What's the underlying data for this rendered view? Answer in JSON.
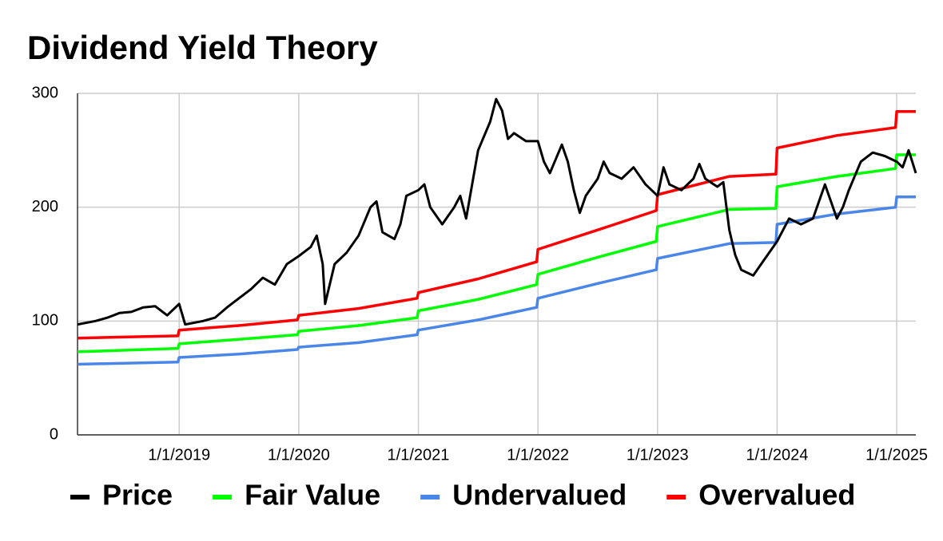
{
  "chart_data": {
    "type": "line",
    "title": "Dividend Yield Theory",
    "xlim": [
      2018.15,
      2025.16
    ],
    "xticks": [
      {
        "value": 2019,
        "label": "1/1/2019"
      },
      {
        "value": 2020,
        "label": "1/1/2020"
      },
      {
        "value": 2021,
        "label": "1/1/2021"
      },
      {
        "value": 2022,
        "label": "1/1/2022"
      },
      {
        "value": 2023,
        "label": "1/1/2023"
      },
      {
        "value": 2024,
        "label": "1/1/2024"
      },
      {
        "value": 2025,
        "label": "1/1/2025"
      }
    ],
    "ylim": [
      0,
      300
    ],
    "yticks": [
      0,
      100,
      200,
      300
    ],
    "grid": true,
    "legend": "bottom",
    "series": [
      {
        "name": "Price",
        "color": "#000000",
        "x": [
          2018.15,
          2018.3,
          2018.4,
          2018.5,
          2018.6,
          2018.7,
          2018.8,
          2018.9,
          2019.0,
          2019.05,
          2019.2,
          2019.3,
          2019.4,
          2019.5,
          2019.6,
          2019.7,
          2019.8,
          2019.9,
          2020.0,
          2020.1,
          2020.15,
          2020.2,
          2020.22,
          2020.3,
          2020.4,
          2020.5,
          2020.6,
          2020.65,
          2020.7,
          2020.8,
          2020.85,
          2020.9,
          2021.0,
          2021.05,
          2021.1,
          2021.2,
          2021.3,
          2021.35,
          2021.4,
          2021.5,
          2021.6,
          2021.65,
          2021.7,
          2021.75,
          2021.8,
          2021.9,
          2022.0,
          2022.05,
          2022.1,
          2022.2,
          2022.25,
          2022.3,
          2022.35,
          2022.4,
          2022.5,
          2022.55,
          2022.6,
          2022.7,
          2022.8,
          2022.9,
          2023.0,
          2023.05,
          2023.1,
          2023.2,
          2023.3,
          2023.35,
          2023.4,
          2023.5,
          2023.55,
          2023.6,
          2023.65,
          2023.7,
          2023.8,
          2023.9,
          2024.0,
          2024.05,
          2024.1,
          2024.2,
          2024.3,
          2024.4,
          2024.45,
          2024.5,
          2024.55,
          2024.6,
          2024.7,
          2024.8,
          2024.9,
          2025.0,
          2025.05,
          2025.1,
          2025.16
        ],
        "values": [
          97,
          100,
          103,
          107,
          108,
          112,
          113,
          105,
          115,
          97,
          100,
          103,
          112,
          120,
          128,
          138,
          132,
          150,
          157,
          165,
          175,
          150,
          115,
          150,
          160,
          175,
          200,
          205,
          178,
          172,
          185,
          210,
          215,
          220,
          200,
          185,
          200,
          210,
          190,
          250,
          275,
          295,
          285,
          260,
          265,
          258,
          258,
          240,
          230,
          255,
          240,
          215,
          195,
          210,
          225,
          240,
          230,
          225,
          235,
          220,
          210,
          235,
          220,
          215,
          225,
          238,
          225,
          218,
          222,
          180,
          158,
          145,
          140,
          155,
          170,
          180,
          190,
          185,
          190,
          220,
          205,
          190,
          200,
          215,
          240,
          248,
          245,
          240,
          235,
          250,
          230
        ]
      },
      {
        "name": "Fair Value",
        "color": "#00ff00",
        "x": [
          2018.15,
          2018.99,
          2019.0,
          2019.5,
          2019.99,
          2020.0,
          2020.5,
          2020.99,
          2021.0,
          2021.5,
          2021.99,
          2022.0,
          2022.5,
          2022.99,
          2023.0,
          2023.6,
          2023.99,
          2024.0,
          2024.5,
          2024.99,
          2025.0,
          2025.16
        ],
        "values": [
          73,
          76,
          80,
          84,
          88,
          91,
          96,
          103,
          109,
          119,
          132,
          141,
          156,
          170,
          183,
          198,
          199,
          218,
          227,
          234,
          246,
          246
        ]
      },
      {
        "name": "Undervalued",
        "color": "#4a86e8",
        "x": [
          2018.15,
          2018.99,
          2019.0,
          2019.5,
          2019.99,
          2020.0,
          2020.5,
          2020.99,
          2021.0,
          2021.5,
          2021.99,
          2022.0,
          2022.5,
          2022.99,
          2023.0,
          2023.6,
          2023.99,
          2024.0,
          2024.5,
          2024.99,
          2025.0,
          2025.16
        ],
        "values": [
          62,
          64,
          68,
          71,
          75,
          77,
          81,
          88,
          92,
          101,
          112,
          120,
          133,
          145,
          155,
          168,
          169,
          185,
          194,
          200,
          209,
          209
        ]
      },
      {
        "name": "Overvalued",
        "color": "#ff0000",
        "x": [
          2018.15,
          2018.99,
          2019.0,
          2019.5,
          2019.99,
          2020.0,
          2020.5,
          2020.99,
          2021.0,
          2021.5,
          2021.99,
          2022.0,
          2022.5,
          2022.99,
          2023.0,
          2023.6,
          2023.99,
          2024.0,
          2024.5,
          2024.99,
          2025.0,
          2025.16
        ],
        "values": [
          85,
          87,
          92,
          96,
          101,
          105,
          111,
          120,
          125,
          137,
          152,
          163,
          180,
          197,
          211,
          227,
          229,
          252,
          263,
          270,
          284,
          284
        ]
      }
    ]
  }
}
